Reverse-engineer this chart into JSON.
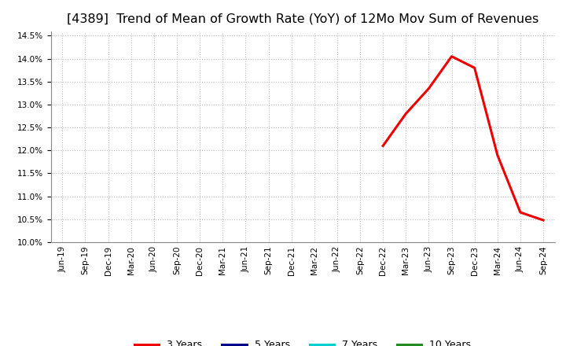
{
  "title": "[4389]  Trend of Mean of Growth Rate (YoY) of 12Mo Mov Sum of Revenues",
  "title_fontsize": 11.5,
  "background_color": "#ffffff",
  "plot_bg_color": "#ffffff",
  "ylim": [
    0.1,
    0.146
  ],
  "yticks": [
    0.1,
    0.105,
    0.11,
    0.115,
    0.12,
    0.125,
    0.13,
    0.135,
    0.14,
    0.145
  ],
  "series": [
    {
      "label": "3 Years",
      "color": "#ee0000",
      "dates": [
        "Dec-22",
        "Mar-23",
        "Jun-23",
        "Sep-23",
        "Dec-23",
        "Mar-24",
        "Jun-24",
        "Sep-24"
      ],
      "values": [
        0.121,
        0.128,
        0.1335,
        0.1405,
        0.138,
        0.119,
        0.1065,
        0.1048
      ]
    },
    {
      "label": "5 Years",
      "color": "#00008b",
      "dates": [],
      "values": []
    },
    {
      "label": "7 Years",
      "color": "#00ced1",
      "dates": [],
      "values": []
    },
    {
      "label": "10 Years",
      "color": "#228b22",
      "dates": [],
      "values": []
    }
  ],
  "x_tick_labels": [
    "Jun-19",
    "Sep-19",
    "Dec-19",
    "Mar-20",
    "Jun-20",
    "Sep-20",
    "Dec-20",
    "Mar-21",
    "Jun-21",
    "Sep-21",
    "Dec-21",
    "Mar-22",
    "Jun-22",
    "Sep-22",
    "Dec-22",
    "Mar-23",
    "Jun-23",
    "Sep-23",
    "Dec-23",
    "Mar-24",
    "Jun-24",
    "Sep-24"
  ],
  "grid_color": "#bbbbbb",
  "grid_linestyle": ":",
  "line_width": 2.2,
  "tick_fontsize": 7.5,
  "legend_fontsize": 9
}
